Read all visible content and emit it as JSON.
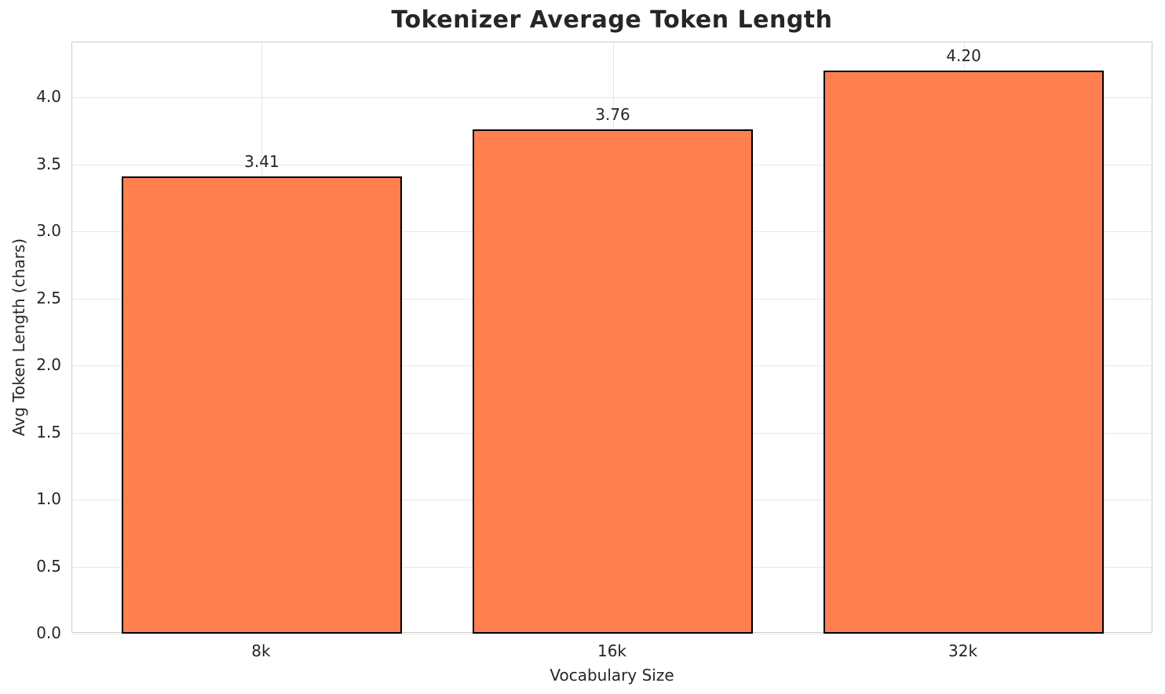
{
  "chart_data": {
    "type": "bar",
    "title": "Tokenizer Average Token Length",
    "xlabel": "Vocabulary Size",
    "ylabel": "Avg Token Length (chars)",
    "categories": [
      "8k",
      "16k",
      "32k"
    ],
    "values": [
      3.41,
      3.76,
      4.2
    ],
    "value_labels": [
      "3.41",
      "3.76",
      "4.20"
    ],
    "yticks": [
      0.0,
      0.5,
      1.0,
      1.5,
      2.0,
      2.5,
      3.0,
      3.5,
      4.0
    ],
    "ytick_labels": [
      "0.0",
      "0.5",
      "1.0",
      "1.5",
      "2.0",
      "2.5",
      "3.0",
      "3.5",
      "4.0"
    ],
    "ylim": [
      0,
      4.41
    ],
    "xlim": [
      -0.54,
      2.54
    ],
    "bar_width_units": 0.8,
    "grid": true,
    "legend": "none",
    "bar_color": "#FF7F50",
    "bar_edge_color": "#000000",
    "grid_color": "#e7e7e7",
    "spine_color": "#cccccc",
    "text_color": "#262626"
  }
}
